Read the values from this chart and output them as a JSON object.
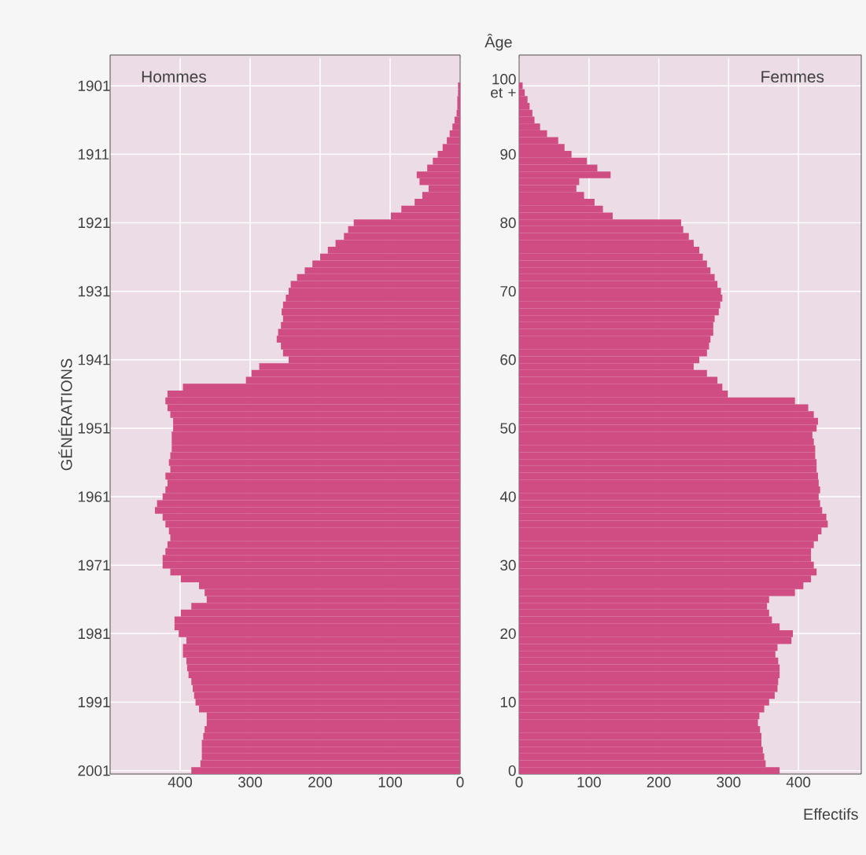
{
  "chart_data": [
    {
      "type": "bar",
      "orientation": "horizontal",
      "title": "Hommes",
      "ylabel": "GÉNÉRATIONS",
      "categories": [
        "1901",
        null,
        null,
        null,
        null,
        null,
        null,
        null,
        null,
        null,
        "1911",
        null,
        null,
        null,
        null,
        null,
        null,
        null,
        null,
        null,
        "1921",
        null,
        null,
        null,
        null,
        null,
        null,
        null,
        null,
        null,
        "1931",
        null,
        null,
        null,
        null,
        null,
        null,
        null,
        null,
        null,
        "1941",
        null,
        null,
        null,
        null,
        null,
        null,
        null,
        null,
        null,
        "1951",
        null,
        null,
        null,
        null,
        null,
        null,
        null,
        null,
        null,
        "1961",
        null,
        null,
        null,
        null,
        null,
        null,
        null,
        null,
        null,
        "1971",
        null,
        null,
        null,
        null,
        null,
        null,
        null,
        null,
        null,
        "1981",
        null,
        null,
        null,
        null,
        null,
        null,
        null,
        null,
        null,
        "1991",
        null,
        null,
        null,
        null,
        null,
        null,
        null,
        null,
        null,
        "2001"
      ],
      "values": [
        3,
        3,
        4,
        4,
        5,
        8,
        11,
        15,
        19,
        25,
        32,
        39,
        47,
        62,
        58,
        45,
        54,
        65,
        84,
        99,
        152,
        160,
        166,
        178,
        189,
        200,
        211,
        222,
        233,
        242,
        245,
        249,
        253,
        255,
        253,
        256,
        260,
        262,
        256,
        253,
        245,
        287,
        298,
        306,
        396,
        418,
        421,
        418,
        414,
        410,
        410,
        412,
        412,
        412,
        414,
        416,
        414,
        421,
        418,
        421,
        425,
        433,
        436,
        425,
        421,
        416,
        414,
        418,
        421,
        425,
        425,
        414,
        399,
        373,
        365,
        362,
        384,
        399,
        408,
        408,
        402,
        391,
        396,
        396,
        391,
        390,
        388,
        384,
        382,
        380,
        378,
        373,
        362,
        362,
        365,
        367,
        369,
        369,
        369,
        371,
        384
      ],
      "color": "#d04d84",
      "xlim": [
        500,
        0
      ],
      "xticks": [
        400,
        300,
        200,
        100,
        0
      ],
      "grid": true
    },
    {
      "type": "bar",
      "orientation": "horizontal",
      "title": "Femmes",
      "ylabel": "Âge",
      "xlabel": "Effectifs",
      "categories": [
        "100 et +",
        null,
        null,
        null,
        null,
        null,
        null,
        null,
        null,
        null,
        "90",
        null,
        null,
        null,
        null,
        null,
        null,
        null,
        null,
        null,
        "80",
        null,
        null,
        null,
        null,
        null,
        null,
        null,
        null,
        null,
        "70",
        null,
        null,
        null,
        null,
        null,
        null,
        null,
        null,
        null,
        "60",
        null,
        null,
        null,
        null,
        null,
        null,
        null,
        null,
        null,
        "50",
        null,
        null,
        null,
        null,
        null,
        null,
        null,
        null,
        null,
        "40",
        null,
        null,
        null,
        null,
        null,
        null,
        null,
        null,
        null,
        "30",
        null,
        null,
        null,
        null,
        null,
        null,
        null,
        null,
        null,
        "20",
        null,
        null,
        null,
        null,
        null,
        null,
        null,
        null,
        null,
        "10",
        null,
        null,
        null,
        null,
        null,
        null,
        null,
        null,
        null,
        "0"
      ],
      "values": [
        5,
        8,
        12,
        15,
        19,
        22,
        30,
        40,
        56,
        65,
        75,
        97,
        112,
        131,
        86,
        82,
        93,
        108,
        120,
        134,
        232,
        235,
        243,
        250,
        258,
        263,
        269,
        274,
        280,
        284,
        289,
        291,
        288,
        286,
        280,
        278,
        278,
        274,
        272,
        269,
        258,
        250,
        269,
        284,
        291,
        299,
        395,
        414,
        422,
        428,
        426,
        420,
        422,
        424,
        424,
        426,
        426,
        428,
        429,
        431,
        429,
        431,
        434,
        440,
        442,
        433,
        428,
        422,
        418,
        418,
        422,
        426,
        418,
        407,
        395,
        358,
        355,
        358,
        362,
        373,
        392,
        390,
        370,
        367,
        371,
        373,
        373,
        371,
        370,
        366,
        358,
        351,
        344,
        342,
        345,
        347,
        347,
        349,
        351,
        353,
        373
      ],
      "color": "#d04d84",
      "xlim": [
        0,
        490
      ],
      "xticks": [
        0,
        100,
        200,
        300,
        400
      ],
      "grid": true
    }
  ]
}
